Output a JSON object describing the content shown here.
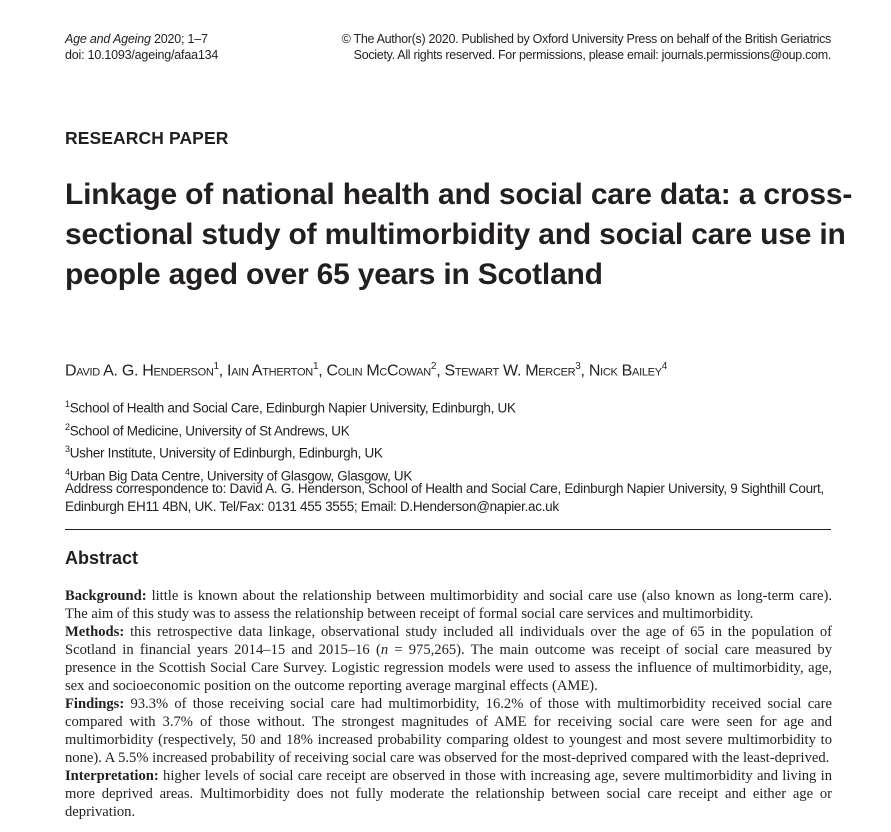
{
  "header": {
    "journal": "Age and Ageing",
    "year_pages": " 2020; 1–7",
    "doi": "doi: 10.1093/ageing/afaa134",
    "copyright_line1": "© The Author(s) 2020. Published by Oxford University Press on behalf of the British Geriatrics",
    "copyright_line2": "Society. All rights reserved. For permissions, please email: journals.permissions@oup.com."
  },
  "paper_type": "RESEARCH PAPER",
  "title": "Linkage of national health and social care data: a cross-sectional study of multimorbidity and social care use in people aged over 65 years in Scotland",
  "authors": [
    {
      "name": "David A. G. Henderson",
      "sup": "1",
      "sep": ", "
    },
    {
      "name": "Iain Atherton",
      "sup": "1",
      "sep": ", "
    },
    {
      "name": "Colin McCowan",
      "sup": "2",
      "sep": ", "
    },
    {
      "name": "Stewart W. Mercer",
      "sup": "3",
      "sep": ", "
    },
    {
      "name": "Nick Bailey",
      "sup": "4",
      "sep": ""
    }
  ],
  "affiliations": [
    {
      "num": "1",
      "text": "School of Health and Social Care, Edinburgh Napier University, Edinburgh, UK"
    },
    {
      "num": "2",
      "text": "School of Medicine, University of St Andrews, UK"
    },
    {
      "num": "3",
      "text": "Usher Institute, University of Edinburgh, Edinburgh, UK"
    },
    {
      "num": "4",
      "text": "Urban Big Data Centre, University of Glasgow, Glasgow, UK"
    }
  ],
  "correspondence": "Address correspondence to: David A. G. Henderson, School of Health and Social Care, Edinburgh Napier University, 9 Sighthill Court, Edinburgh EH11 4BN, UK. Tel/Fax: 0131 455 3555; Email: D.Henderson@napier.ac.uk",
  "abstract": {
    "heading": "Abstract",
    "background_label": "Background:",
    "background_text": " little is known about the relationship between multimorbidity and social care use (also known as long-term care). The aim of this study was to assess the relationship between receipt of formal social care services and multimorbidity.",
    "methods_label": "Methods:",
    "methods_text_a": " this retrospective data linkage, observational study included all individuals over the age of 65 in the population of Scotland in financial years 2014–15 and 2015–16 (",
    "methods_n": "n",
    "methods_text_b": " = 975,265). The main outcome was receipt of social care measured by presence in the Scottish Social Care Survey. Logistic regression models were used to assess the influence of multimorbidity, age, sex and socioeconomic position on the outcome reporting average marginal effects (AME).",
    "findings_label": "Findings:",
    "findings_text": " 93.3% of those receiving social care had multimorbidity, 16.2% of those with multimorbidity received social care compared with 3.7% of those without. The strongest magnitudes of AME for receiving social care were seen for age and multimorbidity (respectively, 50 and 18% increased probability comparing oldest to youngest and most severe multimorbidity to none). A 5.5% increased probability of receiving social care was observed for the most-deprived compared with the least-deprived.",
    "interpretation_label": "Interpretation:",
    "interpretation_text": " higher levels of social care receipt are observed in those with increasing age, severe multimorbidity and living in more deprived areas. Multimorbidity does not fully moderate the relationship between social care receipt and either age or deprivation."
  }
}
